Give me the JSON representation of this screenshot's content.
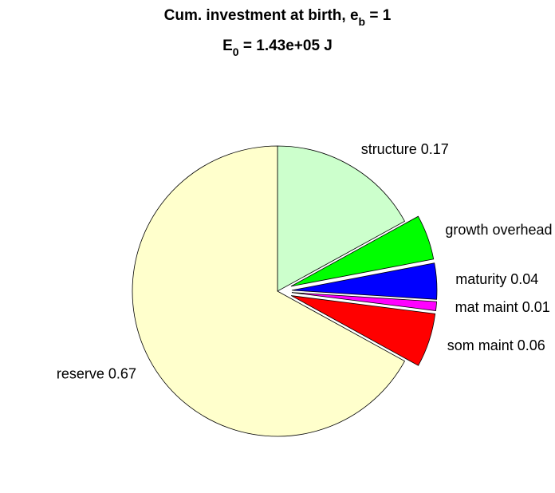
{
  "chart_data": {
    "type": "pie",
    "title": [
      "Cum. investment at birth, e",
      "b",
      " = 1"
    ],
    "subtitle": [
      "E",
      "0",
      " = 1.43e+05 J"
    ],
    "categories": [
      "structure",
      "growth overhead",
      "maturity",
      "mat maint",
      "som maint",
      "reserve"
    ],
    "values": [
      0.17,
      0.05,
      0.04,
      0.01,
      0.06,
      0.67
    ],
    "explode": [
      0,
      1,
      1,
      1,
      1,
      0
    ],
    "colors": [
      "#ccffcc",
      "#00ff00",
      "#0000ff",
      "#ff00ff",
      "#ff0000",
      "#ffffcc"
    ]
  }
}
